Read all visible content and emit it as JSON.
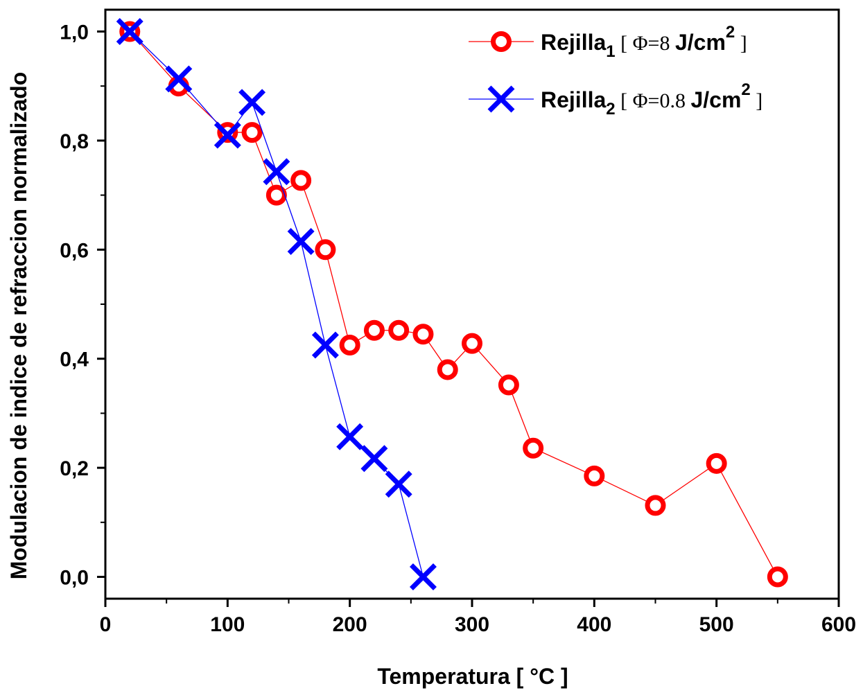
{
  "chart_data": {
    "type": "scatter",
    "title": "",
    "xlabel": "Temperatura [ °C ]",
    "ylabel": "Modulacion de indice de refraccion normalizado",
    "xlim": [
      0,
      600
    ],
    "ylim": [
      -0.04,
      1.04
    ],
    "x_ticks": [
      0,
      100,
      200,
      300,
      400,
      500,
      600
    ],
    "x_tick_labels": [
      "0",
      "100",
      "200",
      "300",
      "400",
      "500",
      "600"
    ],
    "y_ticks": [
      0.0,
      0.2,
      0.4,
      0.6,
      0.8,
      1.0
    ],
    "y_tick_labels": [
      "0,0",
      "0,2",
      "0,4",
      "0,6",
      "0,8",
      "1,0"
    ],
    "grid": false,
    "legend_position": "top-right",
    "series": [
      {
        "name": "Rejilla1",
        "marker": "circle",
        "color": "#ff0000",
        "legend": {
          "base": "Rejilla",
          "sub": "1",
          "open": "[",
          "phi": "Φ=8",
          "unit": "J/cm",
          "sup": "2",
          "close": "]"
        },
        "x": [
          20,
          60,
          100,
          120,
          140,
          160,
          180,
          200,
          220,
          240,
          260,
          280,
          300,
          330,
          350,
          400,
          450,
          500,
          550
        ],
        "y": [
          1.0,
          0.9,
          0.815,
          0.815,
          0.7,
          0.727,
          0.6,
          0.425,
          0.452,
          0.452,
          0.445,
          0.38,
          0.428,
          0.352,
          0.236,
          0.185,
          0.131,
          0.208,
          0.0
        ]
      },
      {
        "name": "Rejilla2",
        "marker": "x",
        "color": "#0000ff",
        "legend": {
          "base": "Rejilla",
          "sub": "2",
          "open": "[",
          "phi": "Φ=0.8",
          "unit": "J/cm",
          "sup": "2",
          "close": "]"
        },
        "x": [
          20,
          60,
          100,
          120,
          140,
          160,
          180,
          200,
          220,
          240,
          260
        ],
        "y": [
          1.0,
          0.913,
          0.81,
          0.87,
          0.743,
          0.615,
          0.425,
          0.257,
          0.217,
          0.17,
          0.0
        ]
      }
    ]
  }
}
